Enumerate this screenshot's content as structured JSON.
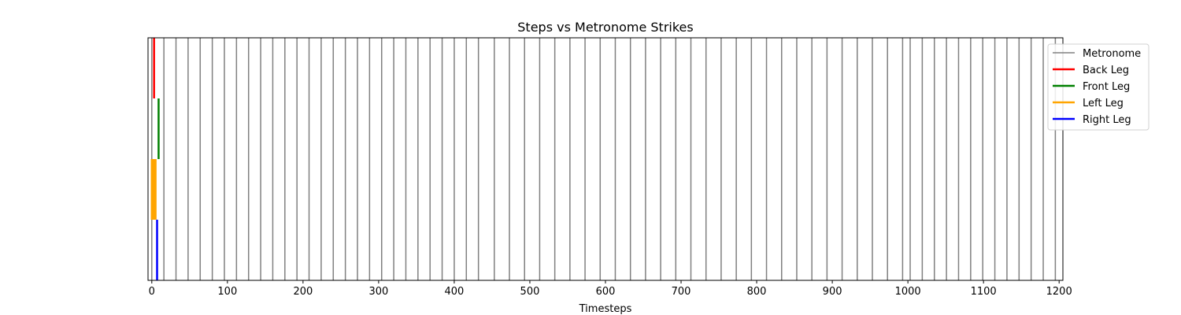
{
  "chart_data": {
    "type": "line",
    "title": "Steps vs Metronome Strikes",
    "xlabel": "Timesteps",
    "ylabel": "",
    "xlim": [
      -5,
      1205
    ],
    "ylim": [
      0,
      4
    ],
    "xticks": [
      0,
      100,
      200,
      300,
      400,
      500,
      600,
      700,
      800,
      900,
      1000,
      1100,
      1200
    ],
    "legend_position": "top-right",
    "grid": false,
    "metronome": {
      "name": "Metronome",
      "color": "#808080",
      "strikes": [
        0,
        16,
        32,
        48,
        64,
        80,
        96,
        112,
        128,
        144,
        160,
        176,
        192,
        208,
        224,
        240,
        256,
        272,
        288,
        304,
        320,
        336,
        352,
        368,
        384,
        400,
        416,
        432,
        453,
        473,
        493,
        513,
        533,
        553,
        573,
        593,
        613,
        633,
        653,
        673,
        693,
        713,
        733,
        753,
        773,
        793,
        813,
        833,
        853,
        873,
        893,
        913,
        933,
        953,
        973,
        993,
        1003,
        1019,
        1035,
        1051,
        1067,
        1083,
        1099,
        1115,
        1131,
        1147,
        1163,
        1179,
        1195
      ]
    },
    "series": [
      {
        "name": "Back Leg",
        "color": "#ff0000",
        "band": [
          3,
          4
        ],
        "steps": [
          3
        ]
      },
      {
        "name": "Front Leg",
        "color": "#008000",
        "band": [
          2,
          3
        ],
        "steps": [
          9
        ]
      },
      {
        "name": "Left Leg",
        "color": "#ffa500",
        "band": [
          1,
          2
        ],
        "steps": [
          0,
          1,
          2,
          3,
          4,
          5
        ]
      },
      {
        "name": "Right Leg",
        "color": "#0000ff",
        "band": [
          0,
          1
        ],
        "steps": [
          7
        ]
      }
    ]
  }
}
